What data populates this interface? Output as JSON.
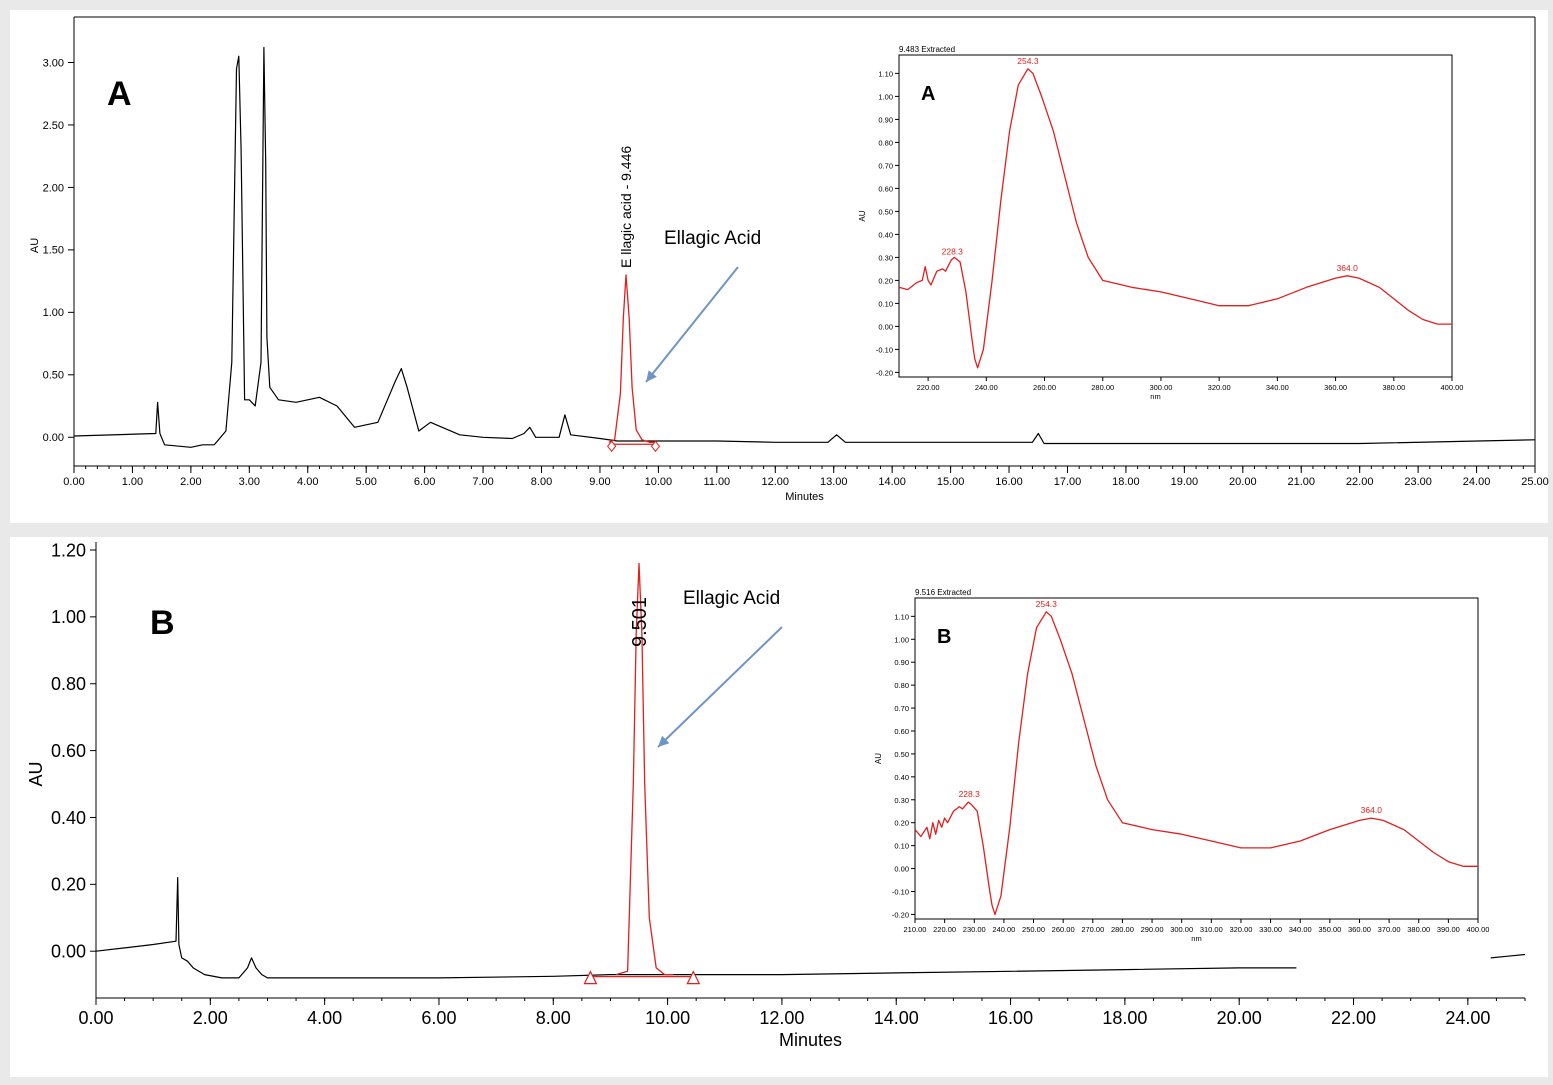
{
  "chart_data": [
    {
      "panel": "A",
      "type": "line",
      "panel_label": "A",
      "xlabel": "Minutes",
      "ylabel": "AU",
      "xlim": [
        0,
        25
      ],
      "ylim": [
        -0.23,
        3.3
      ],
      "xticks": [
        "0.00",
        "1.00",
        "2.00",
        "3.00",
        "4.00",
        "5.00",
        "6.00",
        "7.00",
        "8.00",
        "9.00",
        "10.00",
        "11.00",
        "12.00",
        "13.00",
        "14.00",
        "15.00",
        "16.00",
        "17.00",
        "18.00",
        "19.00",
        "20.00",
        "21.00",
        "22.00",
        "23.00",
        "24.00",
        "25.00"
      ],
      "yticks": [
        "0.00",
        "0.50",
        "1.00",
        "1.50",
        "2.00",
        "2.50",
        "3.00"
      ],
      "series": [
        {
          "color": "#000000",
          "x": [
            0,
            1.4,
            1.43,
            1.47,
            1.55,
            2.0,
            2.2,
            2.4,
            2.6,
            2.7,
            2.78,
            2.82,
            2.86,
            2.92,
            3.0,
            3.1,
            3.2,
            3.25,
            3.28,
            3.3,
            3.35,
            3.5,
            3.8,
            4.2,
            4.5,
            4.8,
            5.2,
            5.5,
            5.6,
            5.7,
            5.9,
            6.1,
            6.3,
            6.6,
            7.0,
            7.5,
            7.7,
            7.8,
            7.9,
            8.3,
            8.4,
            8.5,
            9.0,
            9.3,
            9.6,
            10,
            11,
            12,
            12.9,
            13.05,
            13.2,
            14,
            16.4,
            16.5,
            16.6,
            17,
            18,
            20,
            22,
            25
          ],
          "y": [
            0.01,
            0.03,
            0.28,
            0.03,
            -0.06,
            -0.08,
            -0.06,
            -0.06,
            0.05,
            0.6,
            2.95,
            3.05,
            2.3,
            0.3,
            0.3,
            0.25,
            0.6,
            3.12,
            2.2,
            0.8,
            0.4,
            0.3,
            0.28,
            0.32,
            0.25,
            0.08,
            0.12,
            0.45,
            0.55,
            0.4,
            0.05,
            0.12,
            0.08,
            0.02,
            0.0,
            -0.01,
            0.03,
            0.08,
            0.0,
            0.0,
            0.18,
            0.02,
            -0.01,
            -0.03,
            -0.03,
            -0.03,
            -0.03,
            -0.04,
            -0.04,
            0.02,
            -0.04,
            -0.04,
            -0.04,
            0.03,
            -0.05,
            -0.05,
            -0.05,
            -0.05,
            -0.05,
            -0.02
          ]
        },
        {
          "color": "#e0201e",
          "x": [
            9.15,
            9.25,
            9.35,
            9.4,
            9.446,
            9.5,
            9.55,
            9.62,
            9.72,
            9.85,
            9.95
          ],
          "y": [
            -0.04,
            -0.02,
            0.35,
            0.95,
            1.3,
            0.95,
            0.4,
            0.06,
            -0.02,
            -0.04,
            -0.04
          ]
        }
      ],
      "peak_label": "E llagic acid  - 9.446",
      "arrow_label": "Ellagic Acid",
      "integration_markers": [
        9.2,
        9.95
      ],
      "inset": {
        "header": "9.483 Extracted",
        "panel_label": "A",
        "xlabel": "nm",
        "ylabel": "AU",
        "xlim": [
          210,
          400
        ],
        "ylim": [
          -0.22,
          1.18
        ],
        "xticks": [
          "220.00",
          "240.00",
          "260.00",
          "280.00",
          "300.00",
          "320.00",
          "340.00",
          "360.00",
          "380.00",
          "400.00"
        ],
        "yticks": [
          "-0.20",
          "-0.10",
          "0.00",
          "0.10",
          "0.20",
          "0.30",
          "0.40",
          "0.50",
          "0.60",
          "0.70",
          "0.80",
          "0.90",
          "1.00",
          "1.10"
        ],
        "peaks": [
          "228.3",
          "254.3",
          "364.0"
        ],
        "x": [
          210,
          213,
          216,
          218,
          219,
          220,
          221,
          223,
          225,
          226,
          228,
          229,
          231,
          233,
          235,
          236,
          237,
          239,
          242,
          245,
          248,
          251,
          254.3,
          256,
          259,
          263,
          267,
          271,
          275,
          280,
          290,
          300,
          310,
          320,
          330,
          340,
          350,
          360,
          364,
          368,
          375,
          380,
          385,
          390,
          395,
          400
        ],
        "y": [
          0.17,
          0.16,
          0.19,
          0.2,
          0.26,
          0.2,
          0.18,
          0.24,
          0.25,
          0.24,
          0.29,
          0.3,
          0.28,
          0.15,
          -0.05,
          -0.14,
          -0.18,
          -0.1,
          0.2,
          0.55,
          0.85,
          1.05,
          1.12,
          1.1,
          1.0,
          0.85,
          0.65,
          0.45,
          0.3,
          0.2,
          0.17,
          0.15,
          0.12,
          0.09,
          0.09,
          0.12,
          0.17,
          0.21,
          0.22,
          0.21,
          0.17,
          0.12,
          0.07,
          0.03,
          0.01,
          0.01
        ]
      }
    },
    {
      "panel": "B",
      "type": "line",
      "panel_label": "B",
      "xlabel": "Minutes",
      "ylabel": "AU",
      "xlim": [
        0,
        25
      ],
      "ylim": [
        -0.14,
        1.2
      ],
      "xticks": [
        "0.00",
        "2.00",
        "4.00",
        "6.00",
        "8.00",
        "10.00",
        "12.00",
        "14.00",
        "16.00",
        "18.00",
        "20.00",
        "22.00",
        "24.00"
      ],
      "yticks": [
        "0.00",
        "0.20",
        "0.40",
        "0.60",
        "0.80",
        "1.00",
        "1.20"
      ],
      "series": [
        {
          "color": "#000000",
          "x": [
            0,
            0.5,
            1.0,
            1.4,
            1.43,
            1.45,
            1.5,
            1.6,
            1.7,
            1.9,
            2.2,
            2.5,
            2.65,
            2.72,
            2.8,
            2.9,
            3.0,
            4,
            6,
            8,
            9.0,
            10.5,
            12,
            14,
            16,
            18,
            20,
            21
          ],
          "y": [
            0.0,
            0.01,
            0.02,
            0.03,
            0.22,
            0.02,
            -0.02,
            -0.03,
            -0.05,
            -0.07,
            -0.08,
            -0.08,
            -0.05,
            -0.02,
            -0.05,
            -0.07,
            -0.08,
            -0.08,
            -0.08,
            -0.075,
            -0.07,
            -0.07,
            -0.07,
            -0.065,
            -0.06,
            -0.055,
            -0.05,
            -0.05
          ]
        },
        {
          "color": "#000000",
          "x": [
            24.4,
            24.7,
            25
          ],
          "y": [
            -0.02,
            -0.015,
            -0.01
          ]
        },
        {
          "color": "#e0201e",
          "x": [
            9.1,
            9.3,
            9.4,
            9.45,
            9.5,
            9.55,
            9.6,
            9.68,
            9.8,
            9.95,
            10.1
          ],
          "y": [
            -0.07,
            -0.06,
            0.5,
            0.95,
            1.16,
            0.95,
            0.5,
            0.1,
            -0.05,
            -0.07,
            -0.07
          ]
        }
      ],
      "peak_label": "9.501",
      "arrow_label": "Ellagic Acid",
      "integration_markers": [
        8.65,
        10.45
      ],
      "inset": {
        "header": "9.516 Extracted",
        "panel_label": "B",
        "xlabel": "nm",
        "ylabel": "AU",
        "xlim": [
          210,
          400
        ],
        "ylim": [
          -0.22,
          1.18
        ],
        "xticks": [
          "210.00",
          "220.00",
          "230.00",
          "240.00",
          "250.00",
          "260.00",
          "270.00",
          "280.00",
          "290.00",
          "300.00",
          "310.00",
          "320.00",
          "330.00",
          "340.00",
          "350.00",
          "360.00",
          "370.00",
          "380.00",
          "390.00",
          "400.00"
        ],
        "yticks": [
          "-0.20",
          "-0.10",
          "0.00",
          "0.10",
          "0.20",
          "0.30",
          "0.40",
          "0.50",
          "0.60",
          "0.70",
          "0.80",
          "0.90",
          "1.00",
          "1.10"
        ],
        "peaks": [
          "228.3",
          "254.3",
          "364.0"
        ],
        "x": [
          210,
          212,
          214,
          215,
          216,
          217,
          218,
          219,
          220,
          221,
          223,
          225,
          226,
          228,
          229,
          231,
          233,
          235,
          236,
          237,
          239,
          242,
          245,
          248,
          251,
          254.3,
          256,
          259,
          263,
          267,
          271,
          275,
          280,
          290,
          300,
          310,
          320,
          330,
          340,
          350,
          360,
          364,
          368,
          375,
          380,
          385,
          390,
          395,
          400
        ],
        "y": [
          0.17,
          0.14,
          0.18,
          0.13,
          0.2,
          0.15,
          0.21,
          0.18,
          0.22,
          0.2,
          0.25,
          0.27,
          0.26,
          0.29,
          0.28,
          0.25,
          0.1,
          -0.08,
          -0.16,
          -0.2,
          -0.12,
          0.18,
          0.55,
          0.85,
          1.05,
          1.12,
          1.1,
          1.0,
          0.85,
          0.65,
          0.45,
          0.3,
          0.2,
          0.17,
          0.15,
          0.12,
          0.09,
          0.09,
          0.12,
          0.17,
          0.21,
          0.22,
          0.21,
          0.17,
          0.12,
          0.07,
          0.03,
          0.01,
          0.01
        ]
      }
    }
  ]
}
